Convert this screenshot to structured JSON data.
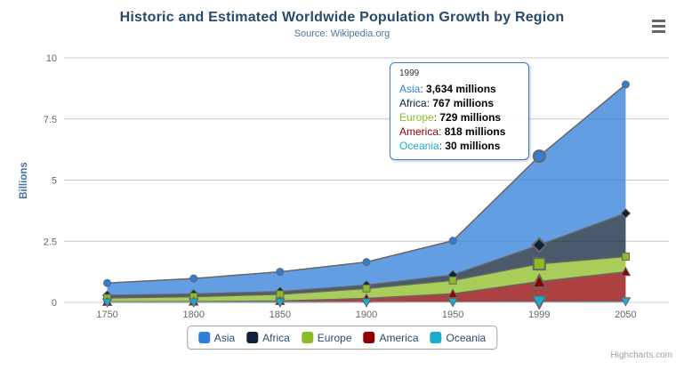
{
  "chart_data": {
    "type": "area",
    "stacking": "normal",
    "title": "Historic and Estimated Worldwide Population Growth by Region",
    "subtitle": "Source: Wikipedia.org",
    "categories": [
      "1750",
      "1800",
      "1850",
      "1900",
      "1950",
      "1999",
      "2050"
    ],
    "xlabel": "",
    "ylabel": "Billions",
    "ylim": [
      0,
      10
    ],
    "yticks": [
      0,
      2.5,
      5,
      7.5,
      10
    ],
    "values_unit": "millions",
    "grid": true,
    "legend_position": "bottom",
    "stack_order": "first-series-on-top",
    "hover": {
      "category": "1999",
      "category_index": 5
    },
    "series": [
      {
        "name": "Asia",
        "color": "#2f7ed8",
        "marker": "circle",
        "values": [
          502,
          635,
          809,
          947,
          1402,
          3634,
          5268
        ]
      },
      {
        "name": "Africa",
        "color": "#0d233a",
        "marker": "diamond",
        "values": [
          106,
          107,
          111,
          133,
          221,
          767,
          1766
        ]
      },
      {
        "name": "Europe",
        "color": "#8bbc21",
        "marker": "square",
        "values": [
          163,
          203,
          276,
          408,
          547,
          729,
          628
        ]
      },
      {
        "name": "America",
        "color": "#910000",
        "marker": "triangle",
        "values": [
          18,
          31,
          54,
          156,
          339,
          818,
          1201
        ]
      },
      {
        "name": "Oceania",
        "color": "#1aadce",
        "marker": "triangle-down",
        "values": [
          2,
          2,
          2,
          6,
          13,
          30,
          46
        ]
      }
    ]
  },
  "tooltip": {
    "header": "1999",
    "rows": [
      {
        "name": "Asia",
        "color": "#2f7ed8",
        "value": "3,634 millions"
      },
      {
        "name": "Africa",
        "color": "#0d233a",
        "value": "767 millions"
      },
      {
        "name": "Europe",
        "color": "#8bbc21",
        "value": "729 millions"
      },
      {
        "name": "America",
        "color": "#910000",
        "value": "818 millions"
      },
      {
        "name": "Oceania",
        "color": "#1aadce",
        "value": "30 millions"
      }
    ]
  },
  "legend": {
    "items": [
      "Asia",
      "Africa",
      "Europe",
      "America",
      "Oceania"
    ]
  },
  "credits": "Highcharts.com",
  "colors": {
    "series_line": "#666666",
    "marker_stroke": "#666666",
    "grid": "#c8c8c8",
    "axis_line": "#c0d0e0",
    "title": "#274b6d",
    "subtitle": "#4d759e",
    "axis_label": "#666666",
    "y_axis_title": "#4572a7",
    "legend_text": "#274b6d",
    "tooltip_border": "#2f7ed8",
    "fill_opacity": 0.75
  }
}
